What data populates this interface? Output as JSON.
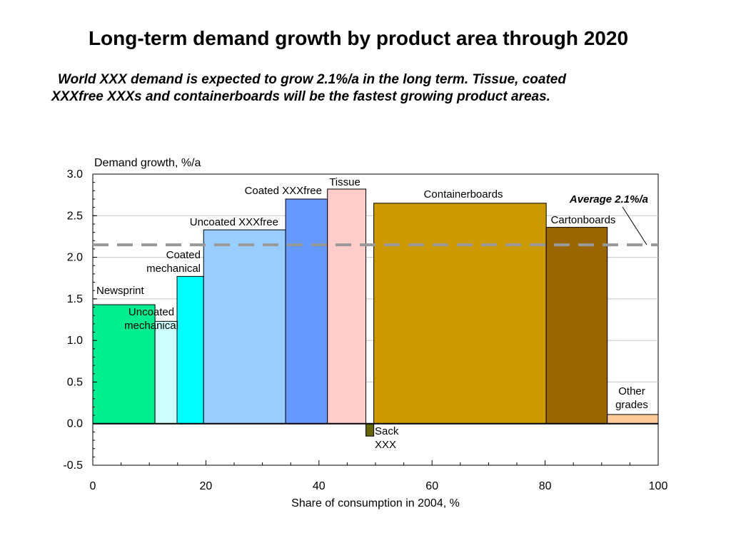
{
  "header": {
    "title": "Long-term demand growth by product area through 2020",
    "subtitle_line1": "World XXX demand is expected to grow 2.1%/a in the long term. Tissue, coated",
    "subtitle_line2": "XXXfree XXXs and containerboards will be the fastest growing product areas."
  },
  "chart_data": {
    "type": "bar",
    "variant": "variable-width (marimekko)",
    "ylabel": "Demand growth, %/a",
    "xlabel": "Share of consumption in 2004, %",
    "xlim": [
      0,
      100
    ],
    "ylim": [
      -0.5,
      3.0
    ],
    "x_ticks": [
      0,
      20,
      40,
      60,
      80,
      100
    ],
    "x_tick_labels": [
      "0",
      "20",
      "40",
      "60",
      "80",
      "100"
    ],
    "y_ticks": [
      -0.5,
      0.0,
      0.5,
      1.0,
      1.5,
      2.0,
      2.5,
      3.0
    ],
    "y_tick_labels": [
      "-0.5",
      "0.0",
      "0.5",
      "1.0",
      "1.5",
      "2.0",
      "2.5",
      "3.0"
    ],
    "grid": "horizontal",
    "segments": [
      {
        "name": "Newsprint",
        "label_lines": [
          "Newsprint"
        ],
        "x0": 0,
        "x1": 11,
        "value": 1.43,
        "color": "#00EE90"
      },
      {
        "name": "Uncoated mechanical",
        "label_lines": [
          "Uncoated",
          "mechanical"
        ],
        "x0": 11,
        "x1": 14.9,
        "value": 1.23,
        "color": "#CCFFFF"
      },
      {
        "name": "Coated mechanical",
        "label_lines": [
          "Coated",
          "mechanical"
        ],
        "x0": 14.9,
        "x1": 19.6,
        "value": 1.77,
        "color": "#00FFFF"
      },
      {
        "name": "Uncoated XXXfree",
        "label_lines": [
          "Uncoated XXXfree"
        ],
        "x0": 19.6,
        "x1": 34.1,
        "value": 2.33,
        "color": "#99CCFF"
      },
      {
        "name": "Coated XXXfree",
        "label_lines": [
          "Coated XXXfree"
        ],
        "x0": 34.1,
        "x1": 41.5,
        "value": 2.7,
        "color": "#6699FF"
      },
      {
        "name": "Tissue",
        "label_lines": [
          "Tissue"
        ],
        "x0": 41.5,
        "x1": 48.3,
        "value": 2.82,
        "color": "#FFCCCC"
      },
      {
        "name": "Sack XXX",
        "label_lines": [
          "Sack",
          "XXX"
        ],
        "x0": 48.3,
        "x1": 49.7,
        "value": -0.15,
        "color": "#666600"
      },
      {
        "name": "Containerboards",
        "label_lines": [
          "Containerboards"
        ],
        "x0": 49.7,
        "x1": 80.2,
        "value": 2.65,
        "color": "#CC9900"
      },
      {
        "name": "Cartonboards",
        "label_lines": [
          "Cartonboards"
        ],
        "x0": 80.2,
        "x1": 91.0,
        "value": 2.36,
        "color": "#996600"
      },
      {
        "name": "Other grades",
        "label_lines": [
          "Other",
          "grades"
        ],
        "x0": 91.0,
        "x1": 100,
        "value": 0.11,
        "color": "#FFCC99"
      }
    ],
    "reference_line": {
      "label": "Average 2.1%/a",
      "value": 2.15,
      "color": "#999999",
      "style": "dashed"
    }
  }
}
